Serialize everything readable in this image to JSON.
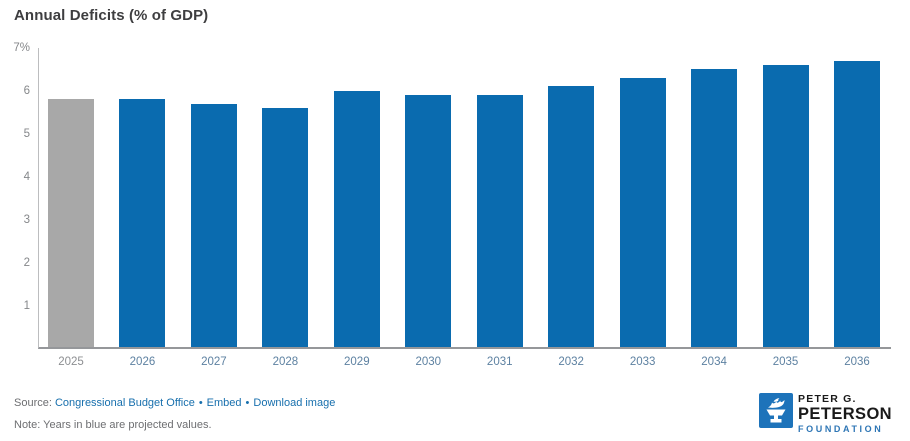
{
  "title": "Annual Deficits (% of GDP)",
  "chart_data": {
    "type": "bar",
    "title": "Annual Deficits (% of GDP)",
    "xlabel": "",
    "ylabel": "% of GDP",
    "ylim": [
      0,
      7
    ],
    "grid": false,
    "yticks": [
      {
        "value": 7,
        "label": "7%"
      },
      {
        "value": 6,
        "label": "6"
      },
      {
        "value": 5,
        "label": "5"
      },
      {
        "value": 4,
        "label": "4"
      },
      {
        "value": 3,
        "label": "3"
      },
      {
        "value": 2,
        "label": "2"
      },
      {
        "value": 1,
        "label": "1"
      }
    ],
    "categories": [
      "2025",
      "2026",
      "2027",
      "2028",
      "2029",
      "2030",
      "2031",
      "2032",
      "2033",
      "2034",
      "2035",
      "2036"
    ],
    "values": [
      5.8,
      5.8,
      5.7,
      5.6,
      6.0,
      5.9,
      5.9,
      6.1,
      6.3,
      6.5,
      6.6,
      6.7
    ],
    "series_types": [
      "actual",
      "projected",
      "projected",
      "projected",
      "projected",
      "projected",
      "projected",
      "projected",
      "projected",
      "projected",
      "projected",
      "projected"
    ],
    "colors": {
      "actual_bar": "#a8a8a8",
      "projected_bar": "#0a6baf",
      "actual_label": "#8d8f92",
      "projected_label": "#5d81a1"
    }
  },
  "footer": {
    "source_label": "Source:",
    "source_link": "Congressional Budget Office",
    "embed_link": "Embed",
    "download_link": "Download image",
    "separator": "•",
    "note": "Note: Years in blue are projected values."
  },
  "logo": {
    "line1": "PETER G.",
    "line2": "PETERSON",
    "line3": "FOUNDATION",
    "brand_blue": "#1d73ba"
  }
}
